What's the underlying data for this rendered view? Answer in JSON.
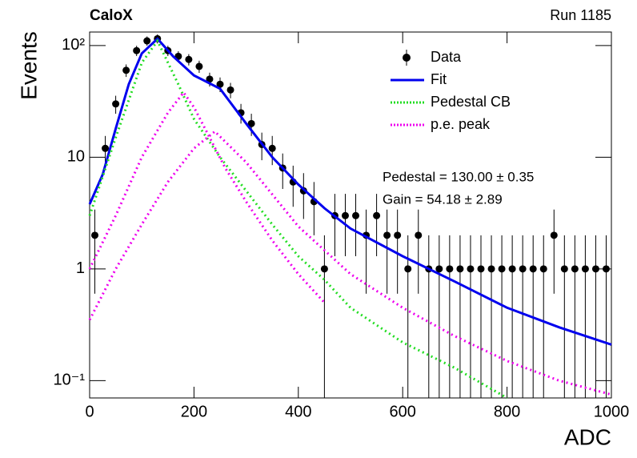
{
  "chart_data": {
    "type": "line",
    "title": "CaloX",
    "subtitle": "Run 1185",
    "x_label": "ADC",
    "y_label": "Events",
    "log_y": true,
    "legend_position": "upper right",
    "xlim": [
      0,
      1000
    ],
    "xticks": [
      0,
      200,
      400,
      600,
      800,
      1000
    ],
    "ylim": [
      0.07,
      132
    ],
    "yticks": [
      {
        "value": 0.1,
        "label": "10⁻¹"
      },
      1,
      10,
      {
        "value": 100,
        "label": "10²"
      }
    ],
    "annotations": [
      "Pedestal = 130.00 ± 0.35",
      "Gain = 54.18 ± 2.89"
    ],
    "series": [
      {
        "name": "Data",
        "style": "points",
        "color": "#000000",
        "x": [
          10,
          30,
          50,
          70,
          90,
          110,
          130,
          150,
          170,
          190,
          210,
          230,
          250,
          270,
          290,
          310,
          330,
          350,
          370,
          390,
          410,
          430,
          450,
          470,
          490,
          510,
          530,
          550,
          570,
          590,
          610,
          630,
          650,
          670,
          690,
          710,
          730,
          750,
          770,
          790,
          810,
          830,
          850,
          870,
          890,
          910,
          930,
          950,
          970,
          990
        ],
        "values": [
          2,
          12,
          30,
          60,
          90,
          110,
          115,
          90,
          80,
          75,
          65,
          50,
          45,
          40,
          25,
          20,
          13,
          12,
          8,
          6,
          5,
          4,
          1,
          3,
          3,
          3,
          2,
          3,
          2,
          2,
          1,
          2,
          1,
          1,
          1,
          1,
          1,
          1,
          1,
          1,
          1,
          1,
          1,
          1,
          2,
          1,
          1,
          1,
          1,
          1
        ],
        "errors": [
          1.4,
          3.5,
          5.5,
          7.7,
          9.5,
          10.5,
          10.7,
          9.5,
          8.9,
          8.7,
          8.1,
          7.1,
          6.7,
          6.3,
          5,
          4.5,
          3.6,
          3.5,
          2.8,
          2.4,
          2.2,
          2,
          1,
          1.7,
          1.7,
          1.7,
          1.4,
          1.7,
          1.4,
          1.4,
          1,
          1.4,
          1,
          1,
          1,
          1,
          1,
          1,
          1,
          1,
          1,
          1,
          1,
          1,
          1.4,
          1,
          1,
          1,
          1,
          1
        ]
      },
      {
        "name": "Fit",
        "style": "solid",
        "color": "#0000ee",
        "x": [
          0,
          25,
          50,
          75,
          100,
          130,
          160,
          200,
          250,
          300,
          350,
          400,
          450,
          500,
          600,
          700,
          800,
          900,
          1000
        ],
        "values": [
          3.8,
          7,
          18,
          45,
          85,
          115,
          80,
          54,
          41,
          20,
          10,
          5.7,
          3.5,
          2.3,
          1.3,
          0.77,
          0.45,
          0.3,
          0.21
        ]
      },
      {
        "name": "Pedestal CB",
        "style": "dotted",
        "color": "#22dd22",
        "x": [
          0,
          50,
          100,
          130,
          170,
          200,
          250,
          300,
          350,
          400,
          450,
          500,
          600,
          700,
          800
        ],
        "values": [
          3,
          15,
          70,
          110,
          45,
          22,
          10,
          5,
          2.5,
          1.3,
          0.8,
          0.45,
          0.22,
          0.13,
          0.07
        ]
      },
      {
        "name": "p.e. peak",
        "style": "dotted",
        "color": "#ee00ee",
        "x": [
          0,
          50,
          100,
          150,
          180,
          200,
          230,
          260,
          300,
          350,
          400,
          450
        ],
        "values": [
          1,
          3,
          10,
          25,
          38,
          28,
          15,
          8,
          4,
          1.8,
          0.9,
          0.5
        ]
      },
      {
        "style": "dotted",
        "color": "#ee00ee",
        "x": [
          0,
          50,
          100,
          150,
          200,
          240,
          300,
          400,
          500,
          600,
          700,
          800,
          900,
          1000
        ],
        "values": [
          0.35,
          1,
          2.5,
          6,
          12,
          17,
          9,
          2.4,
          0.9,
          0.45,
          0.25,
          0.15,
          0.1,
          0.075
        ]
      }
    ]
  }
}
